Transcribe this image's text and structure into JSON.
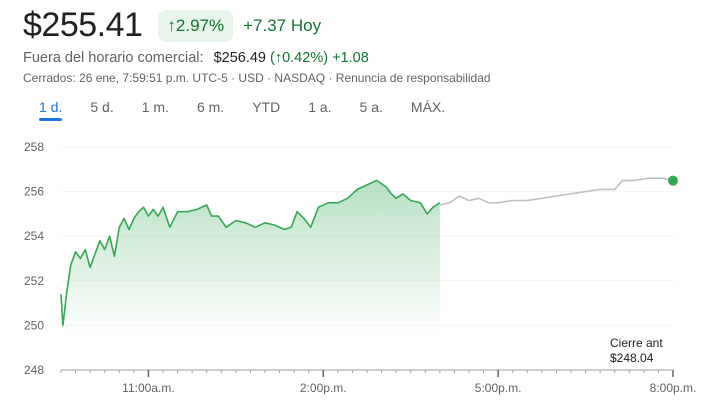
{
  "header": {
    "price": "$255.41",
    "change_pct": "2.97%",
    "change_abs": "+7.37 Hoy",
    "arrow_icon": "arrow-up-icon"
  },
  "after_hours": {
    "label": "Fuera del horario comercial:",
    "price": "$256.49",
    "pct": "(↑0.42%)",
    "abs": "+1.08"
  },
  "meta": "Cerrados: 26 ene, 7:59:51 p.m. UTC-5 · USD · NASDAQ · Renuncia de responsabilidad",
  "tabs": [
    {
      "label": "1 d.",
      "selected": true
    },
    {
      "label": "5 d."
    },
    {
      "label": "1 m."
    },
    {
      "label": "6 m."
    },
    {
      "label": "YTD"
    },
    {
      "label": "1 a."
    },
    {
      "label": "5 a."
    },
    {
      "label": "MÁX."
    }
  ],
  "colors": {
    "up": "#34a853",
    "after_hours": "#bdc1c6",
    "accent": "#1a73e8"
  },
  "chart_data": {
    "type": "line",
    "ylim": [
      248,
      258
    ],
    "yticks": [
      "258",
      "256",
      "254",
      "252",
      "250",
      "248"
    ],
    "xticks": [
      "11:00a.m.",
      "2:00p.m.",
      "5:00p.m.",
      "8:00p.m."
    ],
    "xrange": [
      "9:30",
      "20:00"
    ],
    "grid": true,
    "previous_close": {
      "label": "Cierre ant",
      "value": "$248.04"
    },
    "series": [
      {
        "session": "regular",
        "points": [
          [
            "9:30",
            251.4
          ],
          [
            "9:32",
            250.0
          ],
          [
            "9:36",
            251.5
          ],
          [
            "9:40",
            252.7
          ],
          [
            "9:45",
            253.3
          ],
          [
            "9:50",
            253.0
          ],
          [
            "9:55",
            253.4
          ],
          [
            "10:00",
            252.6
          ],
          [
            "10:05",
            253.2
          ],
          [
            "10:10",
            253.8
          ],
          [
            "10:15",
            253.4
          ],
          [
            "10:20",
            254.0
          ],
          [
            "10:25",
            253.1
          ],
          [
            "10:30",
            254.4
          ],
          [
            "10:35",
            254.8
          ],
          [
            "10:40",
            254.3
          ],
          [
            "10:45",
            254.8
          ],
          [
            "10:50",
            255.1
          ],
          [
            "10:55",
            255.3
          ],
          [
            "11:00",
            254.9
          ],
          [
            "11:05",
            255.2
          ],
          [
            "11:10",
            254.9
          ],
          [
            "11:15",
            255.3
          ],
          [
            "11:22",
            254.4
          ],
          [
            "11:30",
            255.1
          ],
          [
            "11:40",
            255.1
          ],
          [
            "11:50",
            255.2
          ],
          [
            "12:00",
            255.4
          ],
          [
            "12:05",
            254.9
          ],
          [
            "12:12",
            254.9
          ],
          [
            "12:20",
            254.4
          ],
          [
            "12:30",
            254.7
          ],
          [
            "12:40",
            254.6
          ],
          [
            "12:50",
            254.4
          ],
          [
            "13:00",
            254.6
          ],
          [
            "13:10",
            254.5
          ],
          [
            "13:20",
            254.3
          ],
          [
            "13:27",
            254.4
          ],
          [
            "13:33",
            255.1
          ],
          [
            "13:40",
            254.8
          ],
          [
            "13:47",
            254.4
          ],
          [
            "13:55",
            255.3
          ],
          [
            "14:05",
            255.5
          ],
          [
            "14:15",
            255.5
          ],
          [
            "14:25",
            255.7
          ],
          [
            "14:35",
            256.1
          ],
          [
            "14:45",
            256.3
          ],
          [
            "14:55",
            256.5
          ],
          [
            "15:05",
            256.2
          ],
          [
            "15:10",
            255.9
          ],
          [
            "15:15",
            255.7
          ],
          [
            "15:22",
            255.9
          ],
          [
            "15:30",
            255.6
          ],
          [
            "15:40",
            255.5
          ],
          [
            "15:47",
            255.0
          ],
          [
            "15:53",
            255.3
          ],
          [
            "16:00",
            255.5
          ]
        ]
      },
      {
        "session": "after_hours",
        "points": [
          [
            "16:00",
            255.4
          ],
          [
            "16:10",
            255.5
          ],
          [
            "16:20",
            255.8
          ],
          [
            "16:30",
            255.6
          ],
          [
            "16:40",
            255.7
          ],
          [
            "16:50",
            255.5
          ],
          [
            "17:00",
            255.5
          ],
          [
            "17:15",
            255.6
          ],
          [
            "17:30",
            255.6
          ],
          [
            "17:45",
            255.7
          ],
          [
            "18:00",
            255.8
          ],
          [
            "18:15",
            255.9
          ],
          [
            "18:30",
            256.0
          ],
          [
            "18:45",
            256.1
          ],
          [
            "19:00",
            256.1
          ],
          [
            "19:08",
            256.5
          ],
          [
            "19:20",
            256.5
          ],
          [
            "19:35",
            256.6
          ],
          [
            "19:50",
            256.6
          ],
          [
            "20:00",
            256.49
          ]
        ]
      }
    ]
  }
}
